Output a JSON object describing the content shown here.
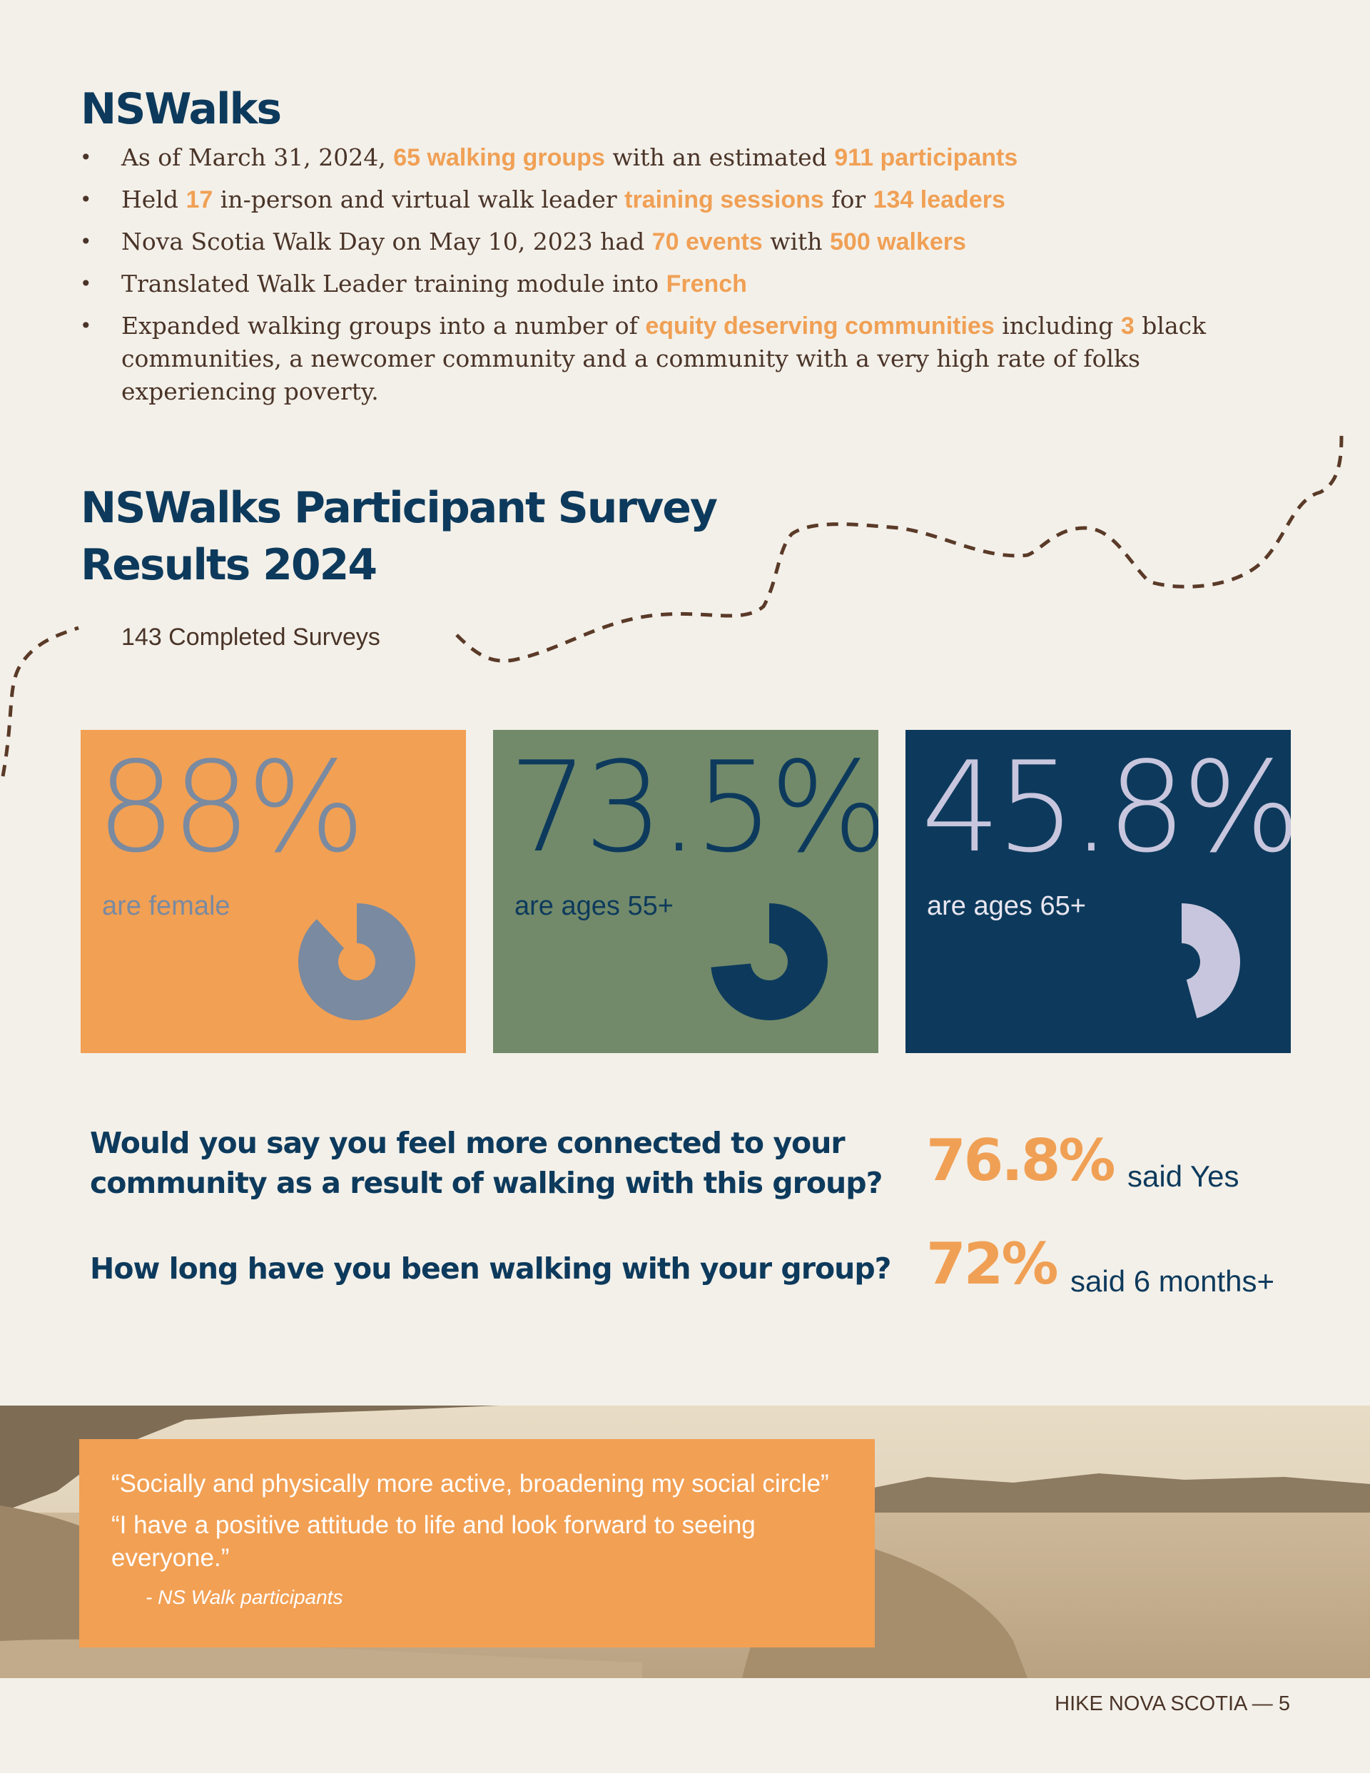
{
  "heading": "NSWalks",
  "bullets": [
    {
      "parts": [
        {
          "t": "As of March 31, 2024,  ",
          "h": false
        },
        {
          "t": "65 walking groups",
          "h": true
        },
        {
          "t": " with an estimated ",
          "h": false
        },
        {
          "t": "911 participants",
          "h": true
        }
      ]
    },
    {
      "parts": [
        {
          "t": "Held ",
          "h": false
        },
        {
          "t": "17",
          "h": true
        },
        {
          "t": " in-person and virtual walk leader ",
          "h": false
        },
        {
          "t": "training sessions",
          "h": true
        },
        {
          "t": " for ",
          "h": false
        },
        {
          "t": "134 leaders",
          "h": true
        }
      ]
    },
    {
      "parts": [
        {
          "t": "Nova Scotia Walk Day on May 10, 2023 had ",
          "h": false
        },
        {
          "t": "70 events",
          "h": true
        },
        {
          "t": " with ",
          "h": false
        },
        {
          "t": "500 walkers",
          "h": true
        }
      ]
    },
    {
      "parts": [
        {
          "t": "Translated Walk Leader training module into ",
          "h": false
        },
        {
          "t": "French",
          "h": true
        }
      ]
    },
    {
      "parts": [
        {
          "t": "Expanded walking groups into a number of ",
          "h": false
        },
        {
          "t": "equity deserving communities",
          "h": true
        },
        {
          "t": " including ",
          "h": false
        },
        {
          "t": "3",
          "h": true
        },
        {
          "t": " black communities, a newcomer community and a community with a very high rate of folks experiencing poverty.",
          "h": false
        }
      ]
    }
  ],
  "survey": {
    "title_line1": "NSWalks  Participant Survey",
    "title_line2": "Results 2024",
    "completed": "143 Completed Surveys"
  },
  "stats": [
    {
      "value": "88%",
      "label": "are female",
      "fraction": 0.88,
      "bg": "#f2a054",
      "fg": "#7a8aa0",
      "label_color": "#7a8aa0"
    },
    {
      "value": "73.5%",
      "label": "are ages 55+",
      "fraction": 0.735,
      "bg": "#728a6a",
      "fg": "#0d3a5c",
      "label_color": "#0d3a5c"
    },
    {
      "value": "45.8%",
      "label": "are ages 65+",
      "fraction": 0.458,
      "bg": "#0d3a5c",
      "fg": "#c8c6de",
      "label_color": "#e8e6f2"
    }
  ],
  "questions": [
    {
      "line1": "Would you say you feel more connected to your",
      "line2": "community as a result of walking with this group?",
      "answer": "76.8%",
      "answer_label": "said Yes"
    },
    {
      "line1": "How long have you been walking with your group?",
      "line2": "",
      "answer": "72%",
      "answer_label": "said 6 months+"
    }
  ],
  "quotes": [
    "“Socially and physically more active, broadening my social circle”",
    "“I have a positive attitude to life and look forward to seeing everyone.”"
  ],
  "quote_signature": "- NS Walk participants",
  "footer": "HIKE NOVA SCOTIA  —  5"
}
